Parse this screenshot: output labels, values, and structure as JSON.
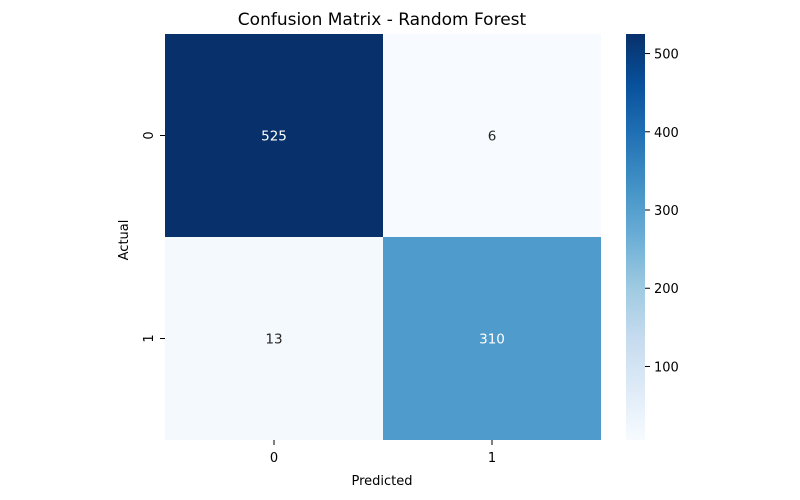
{
  "chart_data": {
    "type": "heatmap",
    "title": "Confusion Matrix - Random Forest",
    "xlabel": "Predicted",
    "ylabel": "Actual",
    "x_categories": [
      "0",
      "1"
    ],
    "y_categories": [
      "0",
      "1"
    ],
    "values": [
      [
        525,
        6
      ],
      [
        13,
        310
      ]
    ],
    "colormap": "Blues",
    "colorbar": {
      "min": 6,
      "max": 525,
      "ticks": [
        100,
        200,
        300,
        400,
        500
      ],
      "tick_labels": [
        "100",
        "200",
        "300",
        "400",
        "500"
      ]
    },
    "grid": false,
    "legend": "colorbar-right"
  }
}
